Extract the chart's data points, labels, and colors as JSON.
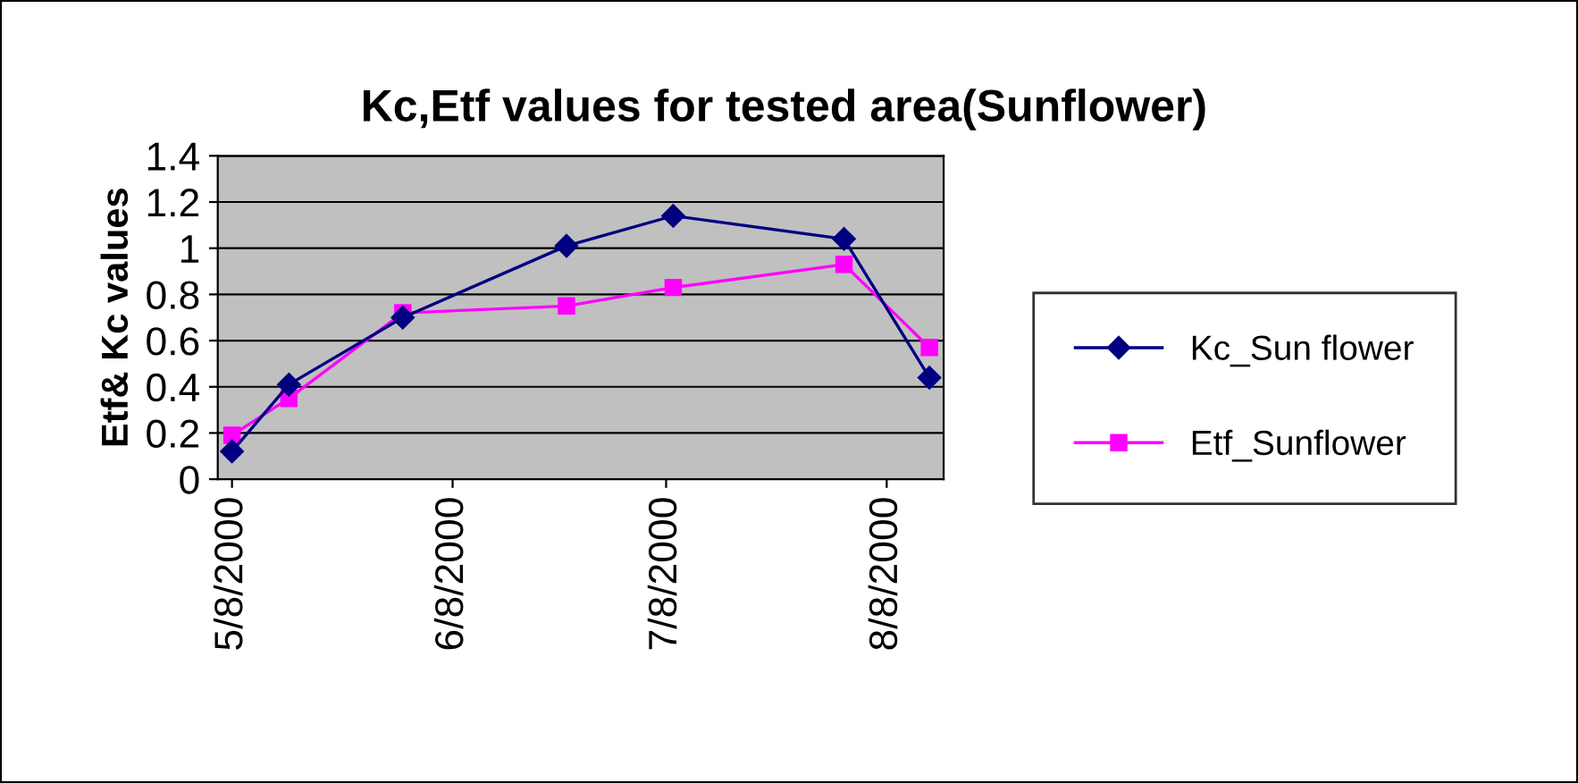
{
  "chart_data": {
    "type": "line",
    "title": "Kc,Etf values for tested area(Sunflower)",
    "ylabel": "Etf& Kc values",
    "x": [
      "2000-05-08",
      "2000-05-16",
      "2000-06-01",
      "2000-06-24",
      "2000-07-09",
      "2000-08-02",
      "2000-08-14"
    ],
    "series": [
      {
        "name": "Kc_Sun flower",
        "color": "#000080",
        "marker": "diamond",
        "values": [
          0.12,
          0.41,
          0.7,
          1.01,
          1.14,
          1.04,
          0.44
        ]
      },
      {
        "name": "Etf_Sunflower",
        "color": "#ff00ff",
        "marker": "square",
        "values": [
          0.19,
          0.35,
          0.72,
          0.75,
          0.83,
          0.93,
          0.57
        ]
      }
    ],
    "xlim": [
      "2000-05-06",
      "2000-08-16"
    ],
    "xticks": [
      {
        "value": "2000-05-08",
        "label": "5/8/2000"
      },
      {
        "value": "2000-06-08",
        "label": "6/8/2000"
      },
      {
        "value": "2000-07-08",
        "label": "7/8/2000"
      },
      {
        "value": "2000-08-08",
        "label": "8/8/2000"
      }
    ],
    "ylim": [
      0,
      1.4
    ],
    "yticks": [
      0,
      0.2,
      0.4,
      0.6,
      0.8,
      1,
      1.2,
      1.4
    ],
    "grid": "y",
    "legend": "right",
    "line_style": "solid"
  }
}
